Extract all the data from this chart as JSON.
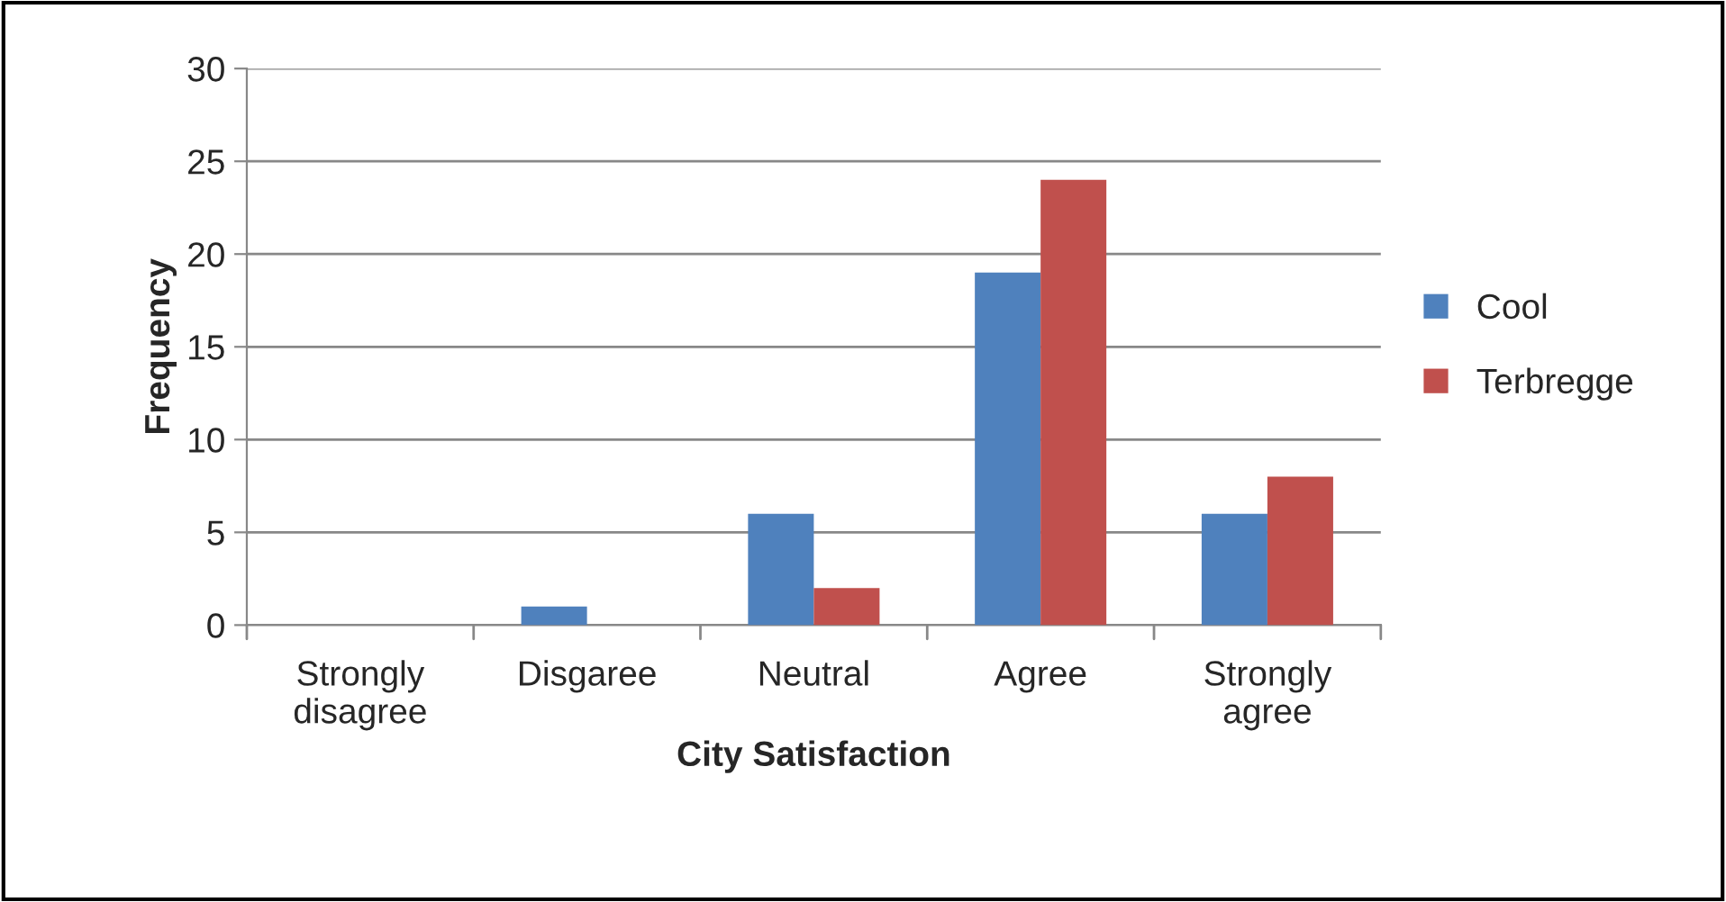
{
  "chart_data": {
    "type": "bar",
    "xlabel": "City Satisfaction",
    "ylabel": "Frequency",
    "categories": [
      "Strongly disagree",
      "Disgaree",
      "Neutral",
      "Agree",
      "Strongly agree"
    ],
    "series": [
      {
        "name": "Cool",
        "color": "#4f81bd",
        "values": [
          0,
          1,
          6,
          19,
          6
        ]
      },
      {
        "name": "Terbregge",
        "color": "#c0504d",
        "values": [
          0,
          0,
          2,
          24,
          8
        ]
      }
    ],
    "ylim": [
      0,
      30
    ],
    "yticks": [
      0,
      5,
      10,
      15,
      20,
      25,
      30
    ],
    "grid": "y",
    "legend": "right"
  }
}
